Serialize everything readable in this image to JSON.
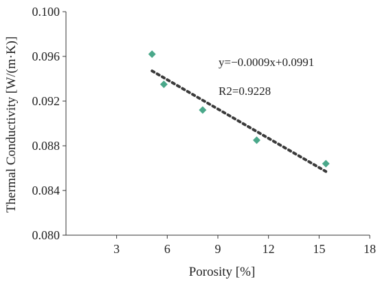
{
  "chart_data": {
    "type": "scatter",
    "xlabel": "Porosity [%]",
    "ylabel": "Thermal Conductivity [W/(m·K)]",
    "xlim": [
      0,
      18
    ],
    "ylim": [
      0.08,
      0.1
    ],
    "xticks": [
      3,
      6,
      9,
      12,
      15,
      18
    ],
    "yticks": [
      0.08,
      0.084,
      0.088,
      0.092,
      0.096,
      0.1
    ],
    "xtick_labels": [
      "3",
      "6",
      "9",
      "12",
      "15",
      "18"
    ],
    "ytick_labels": [
      "0.080",
      "0.084",
      "0.088",
      "0.092",
      "0.096",
      "0.100"
    ],
    "grid": false,
    "series": [
      {
        "marker": "diamond",
        "color": "#4aa88a",
        "x": [
          5.1,
          5.8,
          8.1,
          11.3,
          15.4
        ],
        "y": [
          0.0962,
          0.0935,
          0.0912,
          0.0885,
          0.0864
        ]
      }
    ],
    "trendline": {
      "style": "dotted",
      "color": "#3a3a3a",
      "x_range": [
        5.1,
        15.4
      ],
      "y_range": [
        0.0947,
        0.0857
      ]
    },
    "annotations": {
      "equation": "y=−0.0009x+0.0991",
      "r_squared": "R2=0.9228"
    }
  }
}
